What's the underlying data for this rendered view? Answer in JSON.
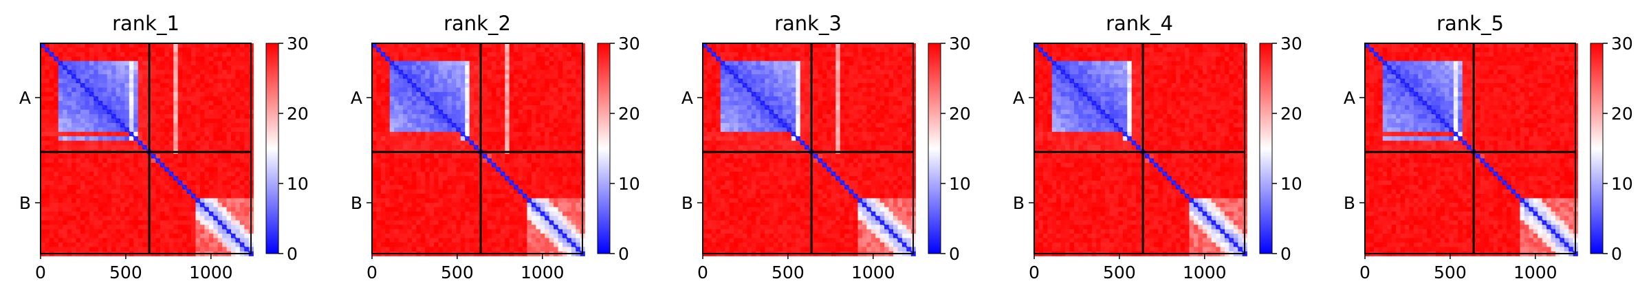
{
  "figure": {
    "type": "PAE heatmap panels"
  },
  "colors": {
    "low": "#0000ff",
    "mid": "#ffffff",
    "high": "#ff0000",
    "frame": "#000000"
  },
  "chart_data": [
    {
      "type": "heatmap",
      "title": "rank_1",
      "chains": [
        "A",
        "B"
      ],
      "chain_lengths": [
        638,
        597
      ],
      "x_ticks": [
        "0",
        "500",
        "1000"
      ],
      "x_tick_values": [
        0,
        500,
        1000
      ],
      "colorbar": {
        "min": 0,
        "max": 30,
        "ticks": [
          "0",
          "10",
          "20",
          "30"
        ],
        "tick_values": [
          0,
          10,
          20,
          30
        ]
      },
      "features": {
        "a_low_region": [
          100,
          540
        ],
        "a_hot_rows": [
          520,
          555
        ],
        "stripe_cols": [
          790,
          805
        ],
        "b_domain_start": 900
      }
    },
    {
      "type": "heatmap",
      "title": "rank_2",
      "chains": [
        "A",
        "B"
      ],
      "chain_lengths": [
        638,
        597
      ],
      "x_ticks": [
        "0",
        "500",
        "1000"
      ],
      "x_tick_values": [
        0,
        500,
        1000
      ],
      "colorbar": {
        "min": 0,
        "max": 30,
        "ticks": [
          "0",
          "10",
          "20",
          "30"
        ],
        "tick_values": [
          0,
          10,
          20,
          30
        ]
      },
      "features": {
        "a_low_region": [
          100,
          560
        ],
        "a_hot_rows": [
          530,
          560
        ],
        "stripe_cols": [
          780,
          795
        ],
        "b_domain_start": 900
      }
    },
    {
      "type": "heatmap",
      "title": "rank_3",
      "chains": [
        "A",
        "B"
      ],
      "chain_lengths": [
        638,
        597
      ],
      "x_ticks": [
        "0",
        "500",
        "1000"
      ],
      "x_tick_values": [
        0,
        500,
        1000
      ],
      "colorbar": {
        "min": 0,
        "max": 30,
        "ticks": [
          "0",
          "10",
          "20",
          "30"
        ],
        "tick_values": [
          0,
          10,
          20,
          30
        ]
      },
      "features": {
        "a_low_region": [
          100,
          560
        ],
        "a_hot_rows": [
          525,
          560
        ],
        "stripe_cols": [
          790,
          800
        ],
        "b_domain_start": 900
      }
    },
    {
      "type": "heatmap",
      "title": "rank_4",
      "chains": [
        "A",
        "B"
      ],
      "chain_lengths": [
        638,
        597
      ],
      "x_ticks": [
        "0",
        "500",
        "1000"
      ],
      "x_tick_values": [
        0,
        500,
        1000
      ],
      "colorbar": {
        "min": 0,
        "max": 30,
        "ticks": [
          "0",
          "10",
          "20",
          "30"
        ],
        "tick_values": [
          0,
          10,
          20,
          30
        ]
      },
      "features": {
        "a_low_region": [
          100,
          560
        ],
        "a_hot_rows": [
          525,
          560
        ],
        "stripe_cols": [],
        "b_domain_start": 900
      }
    },
    {
      "type": "heatmap",
      "title": "rank_5",
      "chains": [
        "A",
        "B"
      ],
      "chain_lengths": [
        638,
        597
      ],
      "x_ticks": [
        "0",
        "500",
        "1000"
      ],
      "x_tick_values": [
        0,
        500,
        1000
      ],
      "colorbar": {
        "min": 0,
        "max": 30,
        "ticks": [
          "0",
          "10",
          "20",
          "30"
        ],
        "tick_values": [
          0,
          10,
          20,
          30
        ]
      },
      "features": {
        "a_low_region": [
          100,
          540
        ],
        "a_hot_rows": [
          520,
          555
        ],
        "stripe_cols": [],
        "b_domain_start": 900
      }
    }
  ]
}
